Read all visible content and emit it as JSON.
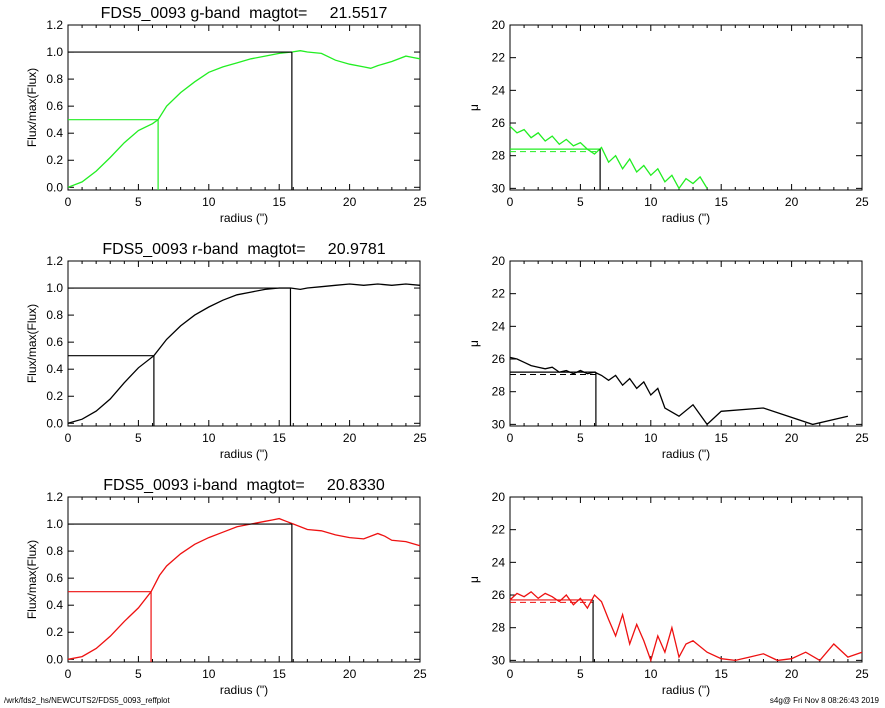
{
  "footer": {
    "path": "/wrk/fds2_hs/NEWCUTS2/FDS5_0093_reffplot",
    "stamp": "s4g@  Fri Nov  8 08:26:43 2019"
  },
  "colors": {
    "g": "#22ee22",
    "r": "#000000",
    "i": "#ee1111",
    "axis": "#000000"
  },
  "chart_data": [
    {
      "type": "line",
      "title": "FDS5_0093 g-band  magtot=     21.5517",
      "xlabel": "radius (\")",
      "ylabel": "Flux/max(Flux)",
      "xlim": [
        0,
        25
      ],
      "ylim": [
        -0.02,
        1.2
      ],
      "xticks": [
        "0",
        "5",
        "10",
        "15",
        "20",
        "25"
      ],
      "yticks": [
        "0.0",
        "0.2",
        "0.4",
        "0.6",
        "0.8",
        "1.0",
        "1.2"
      ],
      "color": "g",
      "series": [
        {
          "x": [
            0,
            1,
            2,
            3,
            4,
            5,
            6,
            6.4,
            7,
            8,
            9,
            10,
            11,
            12,
            13,
            14,
            15,
            15.9,
            16.5,
            17,
            18,
            19,
            20,
            21,
            21.5,
            22,
            23,
            24,
            24.5,
            25
          ],
          "y": [
            0.0,
            0.04,
            0.12,
            0.22,
            0.33,
            0.42,
            0.47,
            0.5,
            0.6,
            0.7,
            0.78,
            0.85,
            0.89,
            0.92,
            0.95,
            0.97,
            0.99,
            1.0,
            1.01,
            1.0,
            0.99,
            0.94,
            0.91,
            0.89,
            0.88,
            0.9,
            0.93,
            0.97,
            0.96,
            0.95
          ]
        }
      ],
      "reference": {
        "x_half": 6.4,
        "x_total": 15.9
      }
    },
    {
      "type": "line",
      "xlabel": "radius (\")",
      "ylabel": "μ",
      "xlim": [
        0,
        25
      ],
      "ylim": [
        30.1,
        20
      ],
      "xticks": [
        "0",
        "5",
        "10",
        "15",
        "20",
        "25"
      ],
      "yticks": [
        "20",
        "22",
        "24",
        "26",
        "28",
        "30"
      ],
      "color": "g",
      "series": [
        {
          "x": [
            0,
            0.5,
            1,
            1.5,
            2,
            2.5,
            3,
            3.5,
            4,
            4.5,
            5,
            5.5,
            6,
            6.5,
            7,
            7.5,
            8,
            8.5,
            9,
            9.5,
            10,
            10.5,
            11,
            11.5,
            12,
            12.5,
            13,
            13.5,
            14
          ],
          "y": [
            26.2,
            26.6,
            26.4,
            26.9,
            26.6,
            27.1,
            26.8,
            27.3,
            27.0,
            27.4,
            27.2,
            27.6,
            27.9,
            27.5,
            28.4,
            28.0,
            28.8,
            28.2,
            29.0,
            28.6,
            29.2,
            28.8,
            29.6,
            29.2,
            30.0,
            29.4,
            29.7,
            29.3,
            30.0
          ]
        }
      ],
      "reference": {
        "x_half": 6.4,
        "mu_half": 27.6
      }
    },
    {
      "type": "line",
      "title": "FDS5_0093 r-band  magtot=     20.9781",
      "xlabel": "radius (\")",
      "ylabel": "Flux/max(Flux)",
      "xlim": [
        0,
        25
      ],
      "ylim": [
        -0.02,
        1.2
      ],
      "xticks": [
        "0",
        "5",
        "10",
        "15",
        "20",
        "25"
      ],
      "yticks": [
        "0.0",
        "0.2",
        "0.4",
        "0.6",
        "0.8",
        "1.0",
        "1.2"
      ],
      "color": "r",
      "series": [
        {
          "x": [
            0,
            1,
            2,
            3,
            4,
            5,
            6.1,
            7,
            8,
            9,
            10,
            11,
            12,
            13,
            14,
            15,
            15.8,
            16.5,
            17,
            18,
            19,
            20,
            21,
            22,
            23,
            24,
            25
          ],
          "y": [
            0.0,
            0.03,
            0.09,
            0.18,
            0.3,
            0.41,
            0.5,
            0.62,
            0.72,
            0.8,
            0.86,
            0.91,
            0.95,
            0.97,
            0.99,
            1.0,
            1.0,
            0.99,
            1.0,
            1.01,
            1.02,
            1.03,
            1.02,
            1.03,
            1.02,
            1.03,
            1.02
          ]
        }
      ],
      "reference": {
        "x_half": 6.1,
        "x_total": 15.8
      }
    },
    {
      "type": "line",
      "xlabel": "radius (\")",
      "ylabel": "μ",
      "xlim": [
        0,
        25
      ],
      "ylim": [
        30.1,
        20
      ],
      "xticks": [
        "0",
        "5",
        "10",
        "15",
        "20",
        "25"
      ],
      "yticks": [
        "20",
        "22",
        "24",
        "26",
        "28",
        "30"
      ],
      "color": "r",
      "series": [
        {
          "x": [
            0,
            0.5,
            1,
            1.5,
            2,
            2.5,
            3,
            3.5,
            4,
            4.5,
            5,
            5.5,
            6,
            6.5,
            7,
            7.5,
            8,
            8.5,
            9,
            9.5,
            10,
            10.5,
            11,
            12,
            13,
            14,
            15,
            18,
            21.5,
            24
          ],
          "y": [
            25.9,
            26.0,
            26.2,
            26.4,
            26.5,
            26.6,
            26.5,
            26.8,
            26.7,
            26.9,
            26.7,
            26.9,
            26.8,
            27.0,
            27.3,
            27.0,
            27.6,
            27.2,
            27.8,
            27.4,
            28.2,
            27.8,
            29.0,
            29.5,
            28.8,
            30.0,
            29.2,
            29.0,
            30.0,
            29.5
          ]
        }
      ],
      "reference": {
        "x_half": 6.1,
        "mu_half": 26.8
      }
    },
    {
      "type": "line",
      "title": "FDS5_0093 i-band  magtot=     20.8330",
      "xlabel": "radius (\")",
      "ylabel": "Flux/max(Flux)",
      "xlim": [
        0,
        25
      ],
      "ylim": [
        -0.02,
        1.2
      ],
      "xticks": [
        "0",
        "5",
        "10",
        "15",
        "20",
        "25"
      ],
      "yticks": [
        "0.0",
        "0.2",
        "0.4",
        "0.6",
        "0.8",
        "1.0",
        "1.2"
      ],
      "color": "i",
      "series": [
        {
          "x": [
            0,
            1,
            2,
            3,
            4,
            5,
            5.9,
            6.5,
            7,
            8,
            9,
            10,
            11,
            12,
            13,
            14,
            14.5,
            15,
            15.5,
            16,
            17,
            18,
            19,
            20,
            21,
            22,
            22.5,
            23,
            24,
            25
          ],
          "y": [
            0.0,
            0.02,
            0.08,
            0.17,
            0.28,
            0.38,
            0.5,
            0.62,
            0.69,
            0.78,
            0.85,
            0.9,
            0.94,
            0.98,
            1.0,
            1.02,
            1.03,
            1.04,
            1.02,
            1.0,
            0.96,
            0.95,
            0.92,
            0.9,
            0.89,
            0.93,
            0.91,
            0.88,
            0.87,
            0.84
          ]
        }
      ],
      "reference": {
        "x_half": 5.9,
        "x_total": 15.9
      }
    },
    {
      "type": "line",
      "xlabel": "radius (\")",
      "ylabel": "μ",
      "xlim": [
        0,
        25
      ],
      "ylim": [
        30.1,
        20
      ],
      "xticks": [
        "0",
        "5",
        "10",
        "15",
        "20",
        "25"
      ],
      "yticks": [
        "20",
        "22",
        "24",
        "26",
        "28",
        "30"
      ],
      "color": "i",
      "series": [
        {
          "x": [
            0,
            0.5,
            1,
            1.5,
            2,
            2.5,
            3,
            3.5,
            4,
            4.5,
            5,
            5.5,
            6,
            6.5,
            7,
            7.5,
            8,
            8.5,
            9,
            9.5,
            10,
            10.5,
            11,
            11.5,
            12,
            12.5,
            13,
            14,
            15,
            16,
            17,
            18,
            19,
            20,
            21,
            22,
            23,
            24,
            25
          ],
          "y": [
            26.3,
            25.9,
            26.1,
            25.8,
            26.2,
            25.9,
            26.1,
            26.4,
            26.0,
            26.6,
            26.2,
            26.8,
            26.0,
            26.4,
            27.5,
            28.5,
            27.2,
            29.0,
            27.8,
            28.8,
            30.0,
            28.5,
            29.5,
            28.0,
            29.8,
            29.0,
            28.8,
            29.5,
            29.9,
            30.0,
            29.8,
            29.6,
            30.0,
            29.9,
            29.5,
            30.0,
            29.0,
            29.8,
            29.5
          ]
        }
      ],
      "reference": {
        "x_half": 5.9,
        "mu_half": 26.3
      }
    }
  ]
}
